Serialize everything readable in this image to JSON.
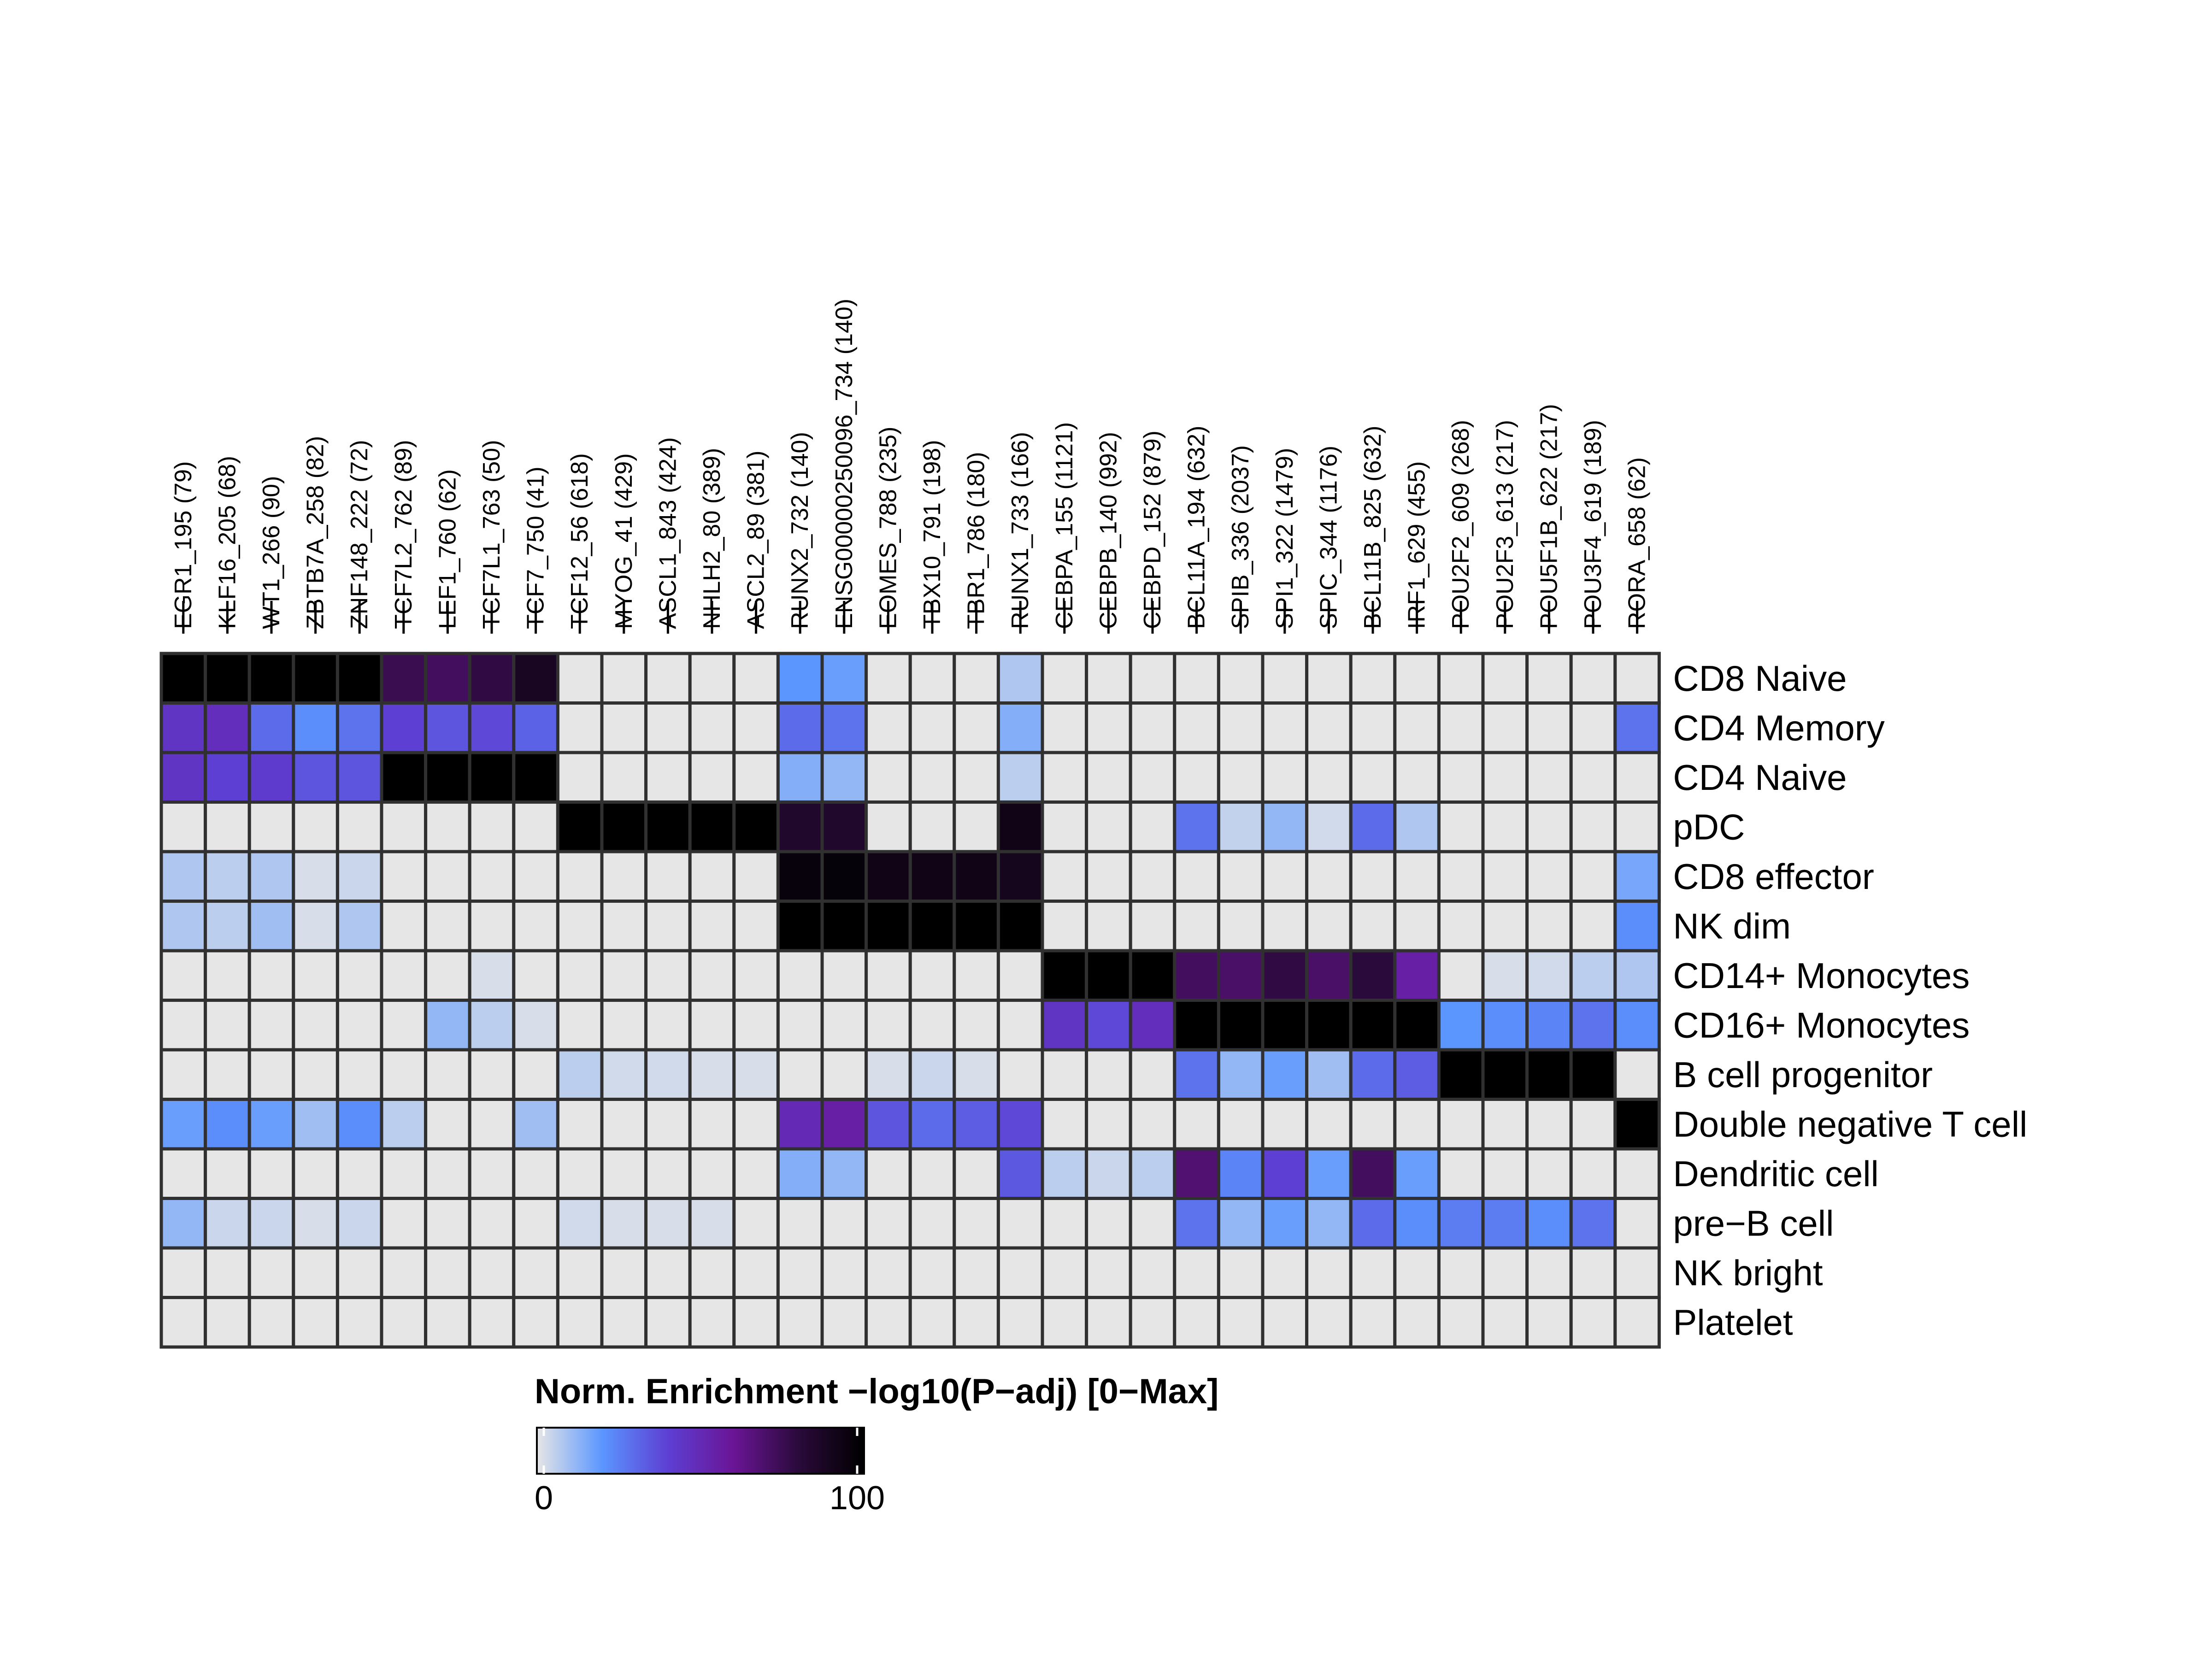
{
  "chart_data": {
    "type": "heatmap",
    "title": "",
    "columns": [
      "EGR1_195 (79)",
      "KLF16_205 (68)",
      "WT1_266 (90)",
      "ZBTB7A_258 (82)",
      "ZNF148_222 (72)",
      "TCF7L2_762 (89)",
      "LEF1_760 (62)",
      "TCF7L1_763 (50)",
      "TCF7_750 (41)",
      "TCF12_56 (618)",
      "MYOG_41 (429)",
      "ASCL1_843 (424)",
      "NHLH2_80 (389)",
      "ASCL2_89 (381)",
      "RUNX2_732 (140)",
      "ENSG00000250096_734 (140)",
      "EOMES_788 (235)",
      "TBX10_791 (198)",
      "TBR1_786 (180)",
      "RUNX1_733 (166)",
      "CEBPA_155 (1121)",
      "CEBPB_140 (992)",
      "CEBPD_152 (879)",
      "BCL11A_194 (632)",
      "SPIB_336 (2037)",
      "SPI1_322 (1479)",
      "SPIC_344 (1176)",
      "BCL11B_825 (632)",
      "IRF1_629 (455)",
      "POU2F2_609 (268)",
      "POU2F3_613 (217)",
      "POU5F1B_622 (217)",
      "POU3F4_619 (189)",
      "RORA_658 (62)"
    ],
    "rows": [
      "CD8 Naive",
      "CD4 Memory",
      "CD4 Naive",
      "pDC",
      "CD8 effector",
      "NK dim",
      "CD14+ Monocytes",
      "CD16+ Monocytes",
      "B cell progenitor",
      "Double negative T cell",
      "Dendritic cell",
      "pre−B cell",
      "NK bright",
      "Platelet"
    ],
    "values": [
      [
        100,
        100,
        100,
        100,
        100,
        75,
        72,
        78,
        88,
        0,
        0,
        0,
        0,
        0,
        20,
        18,
        0,
        0,
        0,
        8,
        0,
        0,
        0,
        0,
        0,
        0,
        0,
        0,
        0,
        0,
        0,
        0,
        0,
        0
      ],
      [
        45,
        48,
        30,
        22,
        28,
        40,
        35,
        38,
        32,
        0,
        0,
        0,
        0,
        0,
        30,
        28,
        0,
        0,
        0,
        14,
        0,
        0,
        0,
        0,
        0,
        0,
        0,
        0,
        0,
        0,
        0,
        0,
        0,
        28
      ],
      [
        45,
        40,
        42,
        35,
        35,
        100,
        100,
        100,
        100,
        0,
        0,
        0,
        0,
        0,
        14,
        12,
        0,
        0,
        0,
        6,
        0,
        0,
        0,
        0,
        0,
        0,
        0,
        0,
        0,
        0,
        0,
        0,
        0,
        0
      ],
      [
        0,
        0,
        0,
        0,
        0,
        0,
        0,
        0,
        0,
        100,
        100,
        100,
        100,
        100,
        85,
        85,
        0,
        0,
        0,
        92,
        0,
        0,
        0,
        28,
        5,
        12,
        3,
        30,
        8,
        0,
        0,
        0,
        0,
        0
      ],
      [
        8,
        6,
        8,
        2,
        4,
        0,
        0,
        0,
        0,
        0,
        0,
        0,
        0,
        0,
        96,
        97,
        92,
        92,
        92,
        90,
        0,
        0,
        0,
        0,
        0,
        0,
        0,
        0,
        0,
        0,
        0,
        0,
        0,
        16
      ],
      [
        8,
        6,
        10,
        2,
        8,
        0,
        0,
        0,
        0,
        0,
        0,
        0,
        0,
        0,
        100,
        100,
        100,
        100,
        100,
        100,
        0,
        0,
        0,
        0,
        0,
        0,
        0,
        0,
        0,
        0,
        0,
        0,
        0,
        22
      ],
      [
        0,
        0,
        0,
        0,
        0,
        0,
        0,
        2,
        0,
        0,
        0,
        0,
        0,
        0,
        0,
        0,
        0,
        0,
        0,
        0,
        100,
        100,
        100,
        72,
        70,
        78,
        70,
        80,
        55,
        0,
        2,
        3,
        6,
        8
      ],
      [
        0,
        0,
        0,
        0,
        0,
        0,
        12,
        6,
        2,
        0,
        0,
        0,
        0,
        0,
        0,
        0,
        0,
        0,
        0,
        0,
        45,
        38,
        48,
        100,
        100,
        100,
        100,
        100,
        100,
        20,
        22,
        24,
        28,
        22
      ],
      [
        0,
        0,
        0,
        0,
        0,
        0,
        0,
        0,
        0,
        6,
        3,
        3,
        2,
        2,
        0,
        0,
        2,
        4,
        2,
        0,
        0,
        0,
        0,
        28,
        12,
        18,
        10,
        30,
        33,
        100,
        100,
        100,
        100,
        0
      ],
      [
        18,
        22,
        18,
        10,
        22,
        6,
        0,
        0,
        10,
        0,
        0,
        0,
        0,
        0,
        50,
        55,
        35,
        30,
        33,
        38,
        0,
        0,
        0,
        0,
        0,
        0,
        0,
        0,
        0,
        0,
        0,
        0,
        0,
        100
      ],
      [
        0,
        0,
        0,
        0,
        0,
        0,
        0,
        0,
        0,
        0,
        0,
        0,
        0,
        0,
        14,
        12,
        0,
        0,
        0,
        34,
        6,
        4,
        6,
        68,
        24,
        40,
        18,
        72,
        18,
        0,
        0,
        0,
        0,
        0
      ],
      [
        12,
        4,
        4,
        2,
        4,
        0,
        0,
        0,
        0,
        3,
        2,
        2,
        2,
        0,
        0,
        0,
        0,
        0,
        0,
        0,
        0,
        0,
        0,
        28,
        12,
        18,
        12,
        30,
        22,
        26,
        26,
        22,
        28,
        0
      ],
      [
        0,
        0,
        0,
        0,
        0,
        0,
        0,
        0,
        0,
        0,
        0,
        0,
        0,
        0,
        0,
        0,
        0,
        0,
        0,
        0,
        0,
        0,
        0,
        0,
        0,
        0,
        0,
        0,
        0,
        0,
        0,
        0,
        0,
        0
      ],
      [
        0,
        0,
        0,
        0,
        0,
        0,
        0,
        0,
        0,
        0,
        0,
        0,
        0,
        0,
        0,
        0,
        0,
        0,
        0,
        0,
        0,
        0,
        0,
        0,
        0,
        0,
        0,
        0,
        0,
        0,
        0,
        0,
        0,
        0
      ]
    ],
    "colorbar": {
      "title": "Norm. Enrichment −log10(P−adj) [0−Max]",
      "min": 0,
      "max": 100,
      "tick_labels": [
        "0",
        "100"
      ],
      "stops": [
        "#e6e6e6",
        "#5b96ff",
        "#5d3fd3",
        "#6a1596",
        "#2a0a3a",
        "#000000"
      ]
    },
    "grid": true,
    "legend_position": "bottom-left"
  }
}
